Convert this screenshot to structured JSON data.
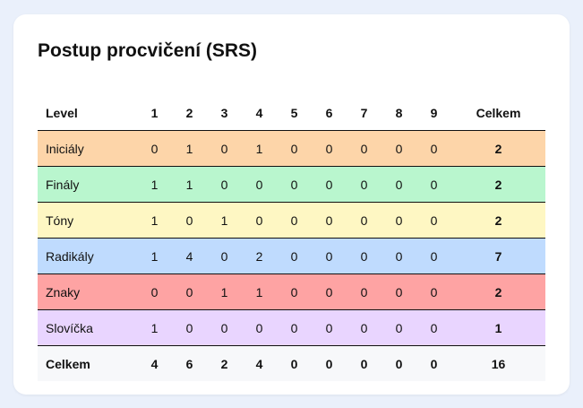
{
  "title": "Postup procvičení (SRS)",
  "header": {
    "level": "Level",
    "levels": [
      "1",
      "2",
      "3",
      "4",
      "5",
      "6",
      "7",
      "8",
      "9"
    ],
    "total": "Celkem"
  },
  "rows": [
    {
      "name": "Iniciály",
      "values": [
        "0",
        "1",
        "0",
        "1",
        "0",
        "0",
        "0",
        "0",
        "0"
      ],
      "total": "2",
      "color": "#fdd5a9"
    },
    {
      "name": "Finály",
      "values": [
        "1",
        "1",
        "0",
        "0",
        "0",
        "0",
        "0",
        "0",
        "0"
      ],
      "total": "2",
      "color": "#b9f6ce"
    },
    {
      "name": "Tóny",
      "values": [
        "1",
        "0",
        "1",
        "0",
        "0",
        "0",
        "0",
        "0",
        "0"
      ],
      "total": "2",
      "color": "#fef7c3"
    },
    {
      "name": "Radikály",
      "values": [
        "1",
        "4",
        "0",
        "2",
        "0",
        "0",
        "0",
        "0",
        "0"
      ],
      "total": "7",
      "color": "#bfdbfe"
    },
    {
      "name": "Znaky",
      "values": [
        "0",
        "0",
        "1",
        "1",
        "0",
        "0",
        "0",
        "0",
        "0"
      ],
      "total": "2",
      "color": "#fea3a3"
    },
    {
      "name": "Slovíčka",
      "values": [
        "1",
        "0",
        "0",
        "0",
        "0",
        "0",
        "0",
        "0",
        "0"
      ],
      "total": "1",
      "color": "#e9d5ff"
    }
  ],
  "footer": {
    "label": "Celkem",
    "values": [
      "4",
      "6",
      "2",
      "4",
      "0",
      "0",
      "0",
      "0",
      "0"
    ],
    "total": "16"
  }
}
